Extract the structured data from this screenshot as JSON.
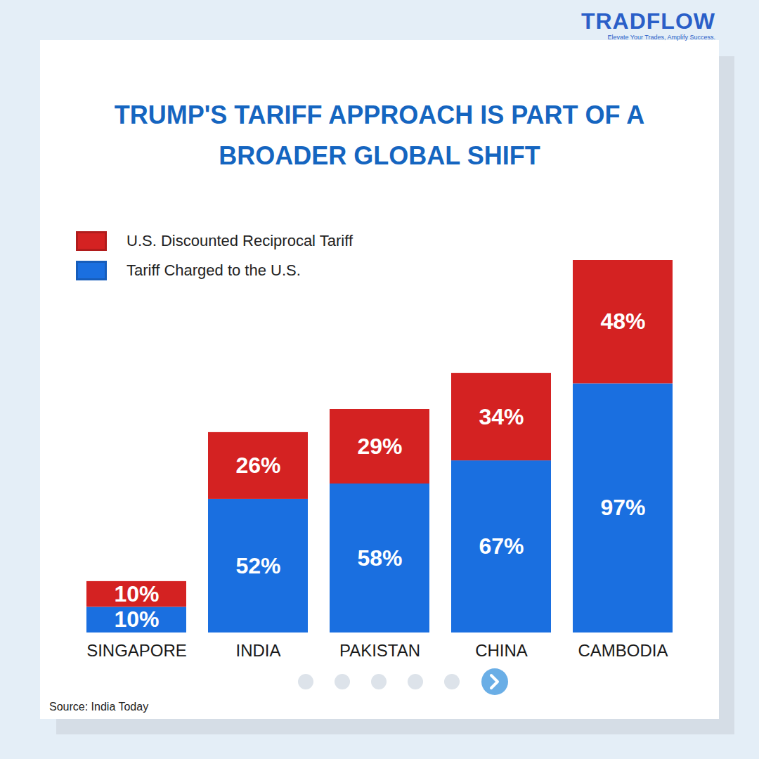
{
  "header": {
    "brand": "TRADFLOW",
    "tagline": "Elevate Your Trades, Amplify Success."
  },
  "chart_data": {
    "type": "bar",
    "title": "TRUMP'S TARIFF APPROACH IS PART OF A BROADER GLOBAL SHIFT",
    "categories": [
      "SINGAPORE",
      "INDIA",
      "PAKISTAN",
      "CHINA",
      "CAMBODIA"
    ],
    "series": [
      {
        "name": "Tariff Charged to the U.S.",
        "color": "#1a6fe0",
        "values": [
          10,
          52,
          58,
          67,
          97
        ],
        "value_labels": [
          "10%",
          "52%",
          "58%",
          "67%",
          "97%"
        ]
      },
      {
        "name": "U.S. Discounted Reciprocal Tariff",
        "color": "#d42222",
        "values": [
          10,
          26,
          29,
          34,
          48
        ],
        "value_labels": [
          "10%",
          "26%",
          "29%",
          "34%",
          "48%"
        ]
      }
    ],
    "stacked": true,
    "data_labels": true,
    "legend": "top-left",
    "tick_labels": "x",
    "ylim": [
      0,
      145
    ],
    "source": "Source: India Today"
  }
}
